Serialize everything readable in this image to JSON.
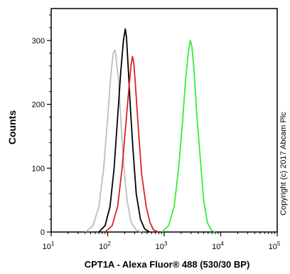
{
  "chart_data": {
    "type": "line",
    "title": "",
    "xlabel": "CPT1A - Alexa Fluor® 488 (530/30 BP)",
    "ylabel": "Counts",
    "x_scale": "log",
    "xlim": [
      10,
      100000
    ],
    "ylim": [
      0,
      350
    ],
    "x_ticks": [
      {
        "value": 10,
        "base": "10",
        "exp": "1"
      },
      {
        "value": 100,
        "base": "10",
        "exp": "2"
      },
      {
        "value": 1000,
        "base": "10",
        "exp": "3"
      },
      {
        "value": 10000,
        "base": "10",
        "exp": "4"
      },
      {
        "value": 100000,
        "base": "10",
        "exp": "5"
      }
    ],
    "y_ticks": [
      0,
      100,
      200,
      300
    ],
    "grid": false,
    "annotation": "Copyright (c) 2017 Abcam Plc",
    "series": [
      {
        "color": "#bdbdbd",
        "x": [
          40,
          55,
          70,
          85,
          100,
          115,
          125,
          135,
          140,
          145,
          155,
          170,
          190,
          220,
          260,
          320,
          400
        ],
        "y": [
          0,
          10,
          40,
          100,
          180,
          250,
          280,
          285,
          275,
          260,
          240,
          180,
          110,
          50,
          15,
          3,
          0
        ]
      },
      {
        "color": "#000000",
        "x": [
          70,
          90,
          110,
          130,
          150,
          170,
          190,
          205,
          215,
          230,
          250,
          280,
          320,
          380,
          450,
          550
        ],
        "y": [
          0,
          10,
          40,
          100,
          180,
          250,
          300,
          318,
          305,
          260,
          200,
          130,
          60,
          20,
          5,
          0
        ]
      },
      {
        "color": "#e02020",
        "x": [
          90,
          120,
          150,
          180,
          210,
          240,
          260,
          275,
          290,
          310,
          350,
          400,
          480,
          560,
          650,
          800
        ],
        "y": [
          0,
          10,
          40,
          100,
          170,
          230,
          262,
          275,
          265,
          230,
          160,
          90,
          40,
          15,
          3,
          0
        ]
      },
      {
        "color": "#33ee33",
        "x": [
          900,
          1200,
          1500,
          1800,
          2100,
          2400,
          2700,
          2900,
          3100,
          3400,
          3800,
          4400,
          5000,
          5800,
          6800,
          8000
        ],
        "y": [
          0,
          10,
          40,
          100,
          170,
          240,
          285,
          300,
          290,
          250,
          180,
          110,
          50,
          15,
          3,
          0
        ]
      }
    ]
  }
}
